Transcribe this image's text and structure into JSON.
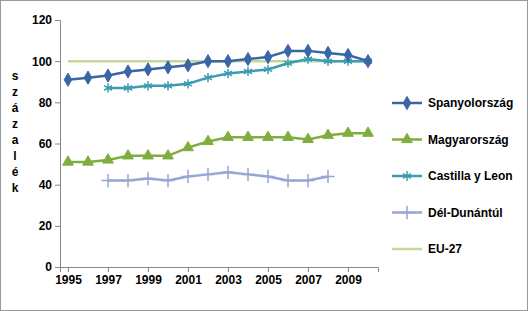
{
  "chart_data": {
    "type": "line",
    "y_label": "százalék",
    "x": [
      1995,
      1996,
      1997,
      1998,
      1999,
      2000,
      2001,
      2002,
      2003,
      2004,
      2005,
      2006,
      2007,
      2008,
      2009,
      2010
    ],
    "xlim": [
      1994.6,
      2010.5
    ],
    "xticks": [
      1995,
      1997,
      1999,
      2001,
      2003,
      2005,
      2007,
      2009
    ],
    "ylim": [
      0,
      120
    ],
    "yticks": [
      0,
      20,
      40,
      60,
      80,
      100,
      120
    ],
    "grid": false,
    "legend": "right",
    "series": [
      {
        "name": "Spanyolország",
        "color": "#3a66a6",
        "marker": "diamond",
        "values": [
          91,
          92,
          93,
          95,
          96,
          97,
          98,
          100,
          100,
          101,
          102,
          105,
          105,
          104,
          103,
          100
        ]
      },
      {
        "name": "Magyarország",
        "color": "#7fae3c",
        "marker": "triangle",
        "values": [
          51,
          51,
          52,
          54,
          54,
          54,
          58,
          61,
          63,
          63,
          63,
          63,
          62,
          64,
          65,
          65
        ]
      },
      {
        "name": "Castilla y Leon",
        "color": "#3c9db2",
        "marker": "asterisk",
        "values": [
          null,
          null,
          87,
          87,
          88,
          88,
          89,
          92,
          94,
          95,
          96,
          99,
          101,
          100,
          100,
          100
        ]
      },
      {
        "name": "Dél-Dunántúl",
        "color": "#97a6d4",
        "marker": "plus",
        "values": [
          null,
          null,
          42,
          42,
          43,
          42,
          44,
          45,
          46,
          45,
          44,
          42,
          42,
          44,
          null,
          null
        ]
      },
      {
        "name": "EU-27",
        "color": "#c3d69b",
        "marker": "none",
        "values": [
          100,
          100,
          100,
          100,
          100,
          100,
          100,
          100,
          100,
          100,
          100,
          100,
          100,
          100,
          100,
          100
        ]
      }
    ]
  }
}
